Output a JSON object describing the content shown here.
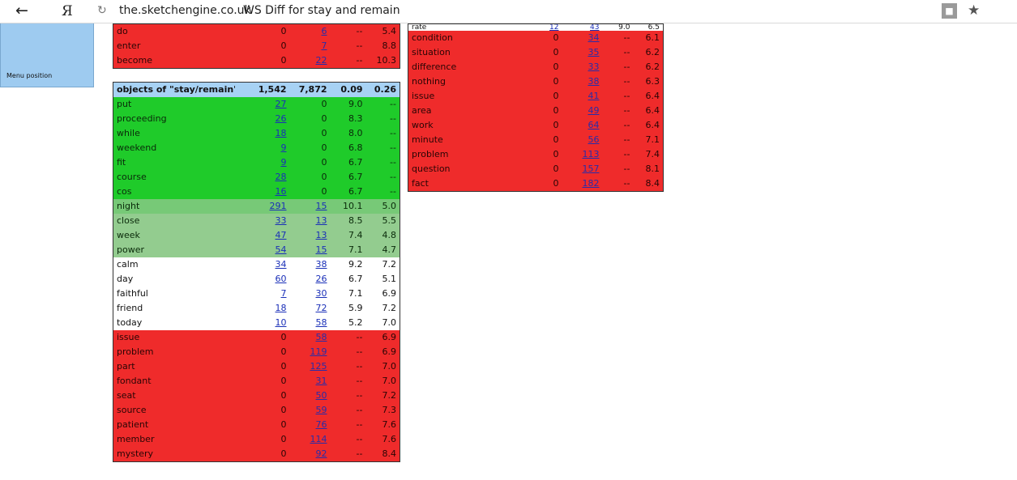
{
  "browser": {
    "back_icon": "←",
    "yandex_icon": "Я",
    "reload_icon": "↻",
    "url": "the.sketchengine.co.uk",
    "page_title": "WS Diff for stay and remain",
    "lock_icon": "🔒",
    "star_icon": "★"
  },
  "sidepanel": {
    "label": "Menu position"
  },
  "left_top": {
    "rows": [
      {
        "word": "do",
        "c1": "0",
        "c2": "6",
        "s1": "--",
        "s2": "5.4"
      },
      {
        "word": "enter",
        "c1": "0",
        "c2": "7",
        "s1": "--",
        "s2": "8.8"
      },
      {
        "word": "become",
        "c1": "0",
        "c2": "22",
        "s1": "--",
        "s2": "10.3"
      }
    ]
  },
  "objects": {
    "header": {
      "word": "objects of \"stay/remain\"",
      "c1": "1,542",
      "c2": "7,872",
      "s1": "0.09",
      "s2": "0.26"
    },
    "rows_green": [
      {
        "word": "put",
        "c1": "27",
        "c2": "0",
        "s1": "9.0",
        "s2": "--"
      },
      {
        "word": "proceeding",
        "c1": "26",
        "c2": "0",
        "s1": "8.3",
        "s2": "--"
      },
      {
        "word": "while",
        "c1": "18",
        "c2": "0",
        "s1": "8.0",
        "s2": "--"
      },
      {
        "word": "weekend",
        "c1": "9",
        "c2": "0",
        "s1": "6.8",
        "s2": "--"
      },
      {
        "word": "fit",
        "c1": "9",
        "c2": "0",
        "s1": "6.7",
        "s2": "--"
      },
      {
        "word": "course",
        "c1": "28",
        "c2": "0",
        "s1": "6.7",
        "s2": "--"
      },
      {
        "word": "cos",
        "c1": "16",
        "c2": "0",
        "s1": "6.7",
        "s2": "--"
      }
    ],
    "rows_green2": [
      {
        "word": "night",
        "c1": "291",
        "c2": "15",
        "s1": "10.1",
        "s2": "5.0"
      }
    ],
    "rows_green3": [
      {
        "word": "close",
        "c1": "33",
        "c2": "13",
        "s1": "8.5",
        "s2": "5.5"
      },
      {
        "word": "week",
        "c1": "47",
        "c2": "13",
        "s1": "7.4",
        "s2": "4.8"
      },
      {
        "word": "power",
        "c1": "54",
        "c2": "15",
        "s1": "7.1",
        "s2": "4.7"
      }
    ],
    "rows_white": [
      {
        "word": "calm",
        "c1": "34",
        "c2": "38",
        "s1": "9.2",
        "s2": "7.2"
      },
      {
        "word": "day",
        "c1": "60",
        "c2": "26",
        "s1": "6.7",
        "s2": "5.1"
      },
      {
        "word": "faithful",
        "c1": "7",
        "c2": "30",
        "s1": "7.1",
        "s2": "6.9"
      },
      {
        "word": "friend",
        "c1": "18",
        "c2": "72",
        "s1": "5.9",
        "s2": "7.2"
      },
      {
        "word": "today",
        "c1": "10",
        "c2": "58",
        "s1": "5.2",
        "s2": "7.0"
      }
    ],
    "rows_red": [
      {
        "word": "issue",
        "c1": "0",
        "c2": "58",
        "s1": "--",
        "s2": "6.9"
      },
      {
        "word": "problem",
        "c1": "0",
        "c2": "119",
        "s1": "--",
        "s2": "6.9"
      },
      {
        "word": "part",
        "c1": "0",
        "c2": "125",
        "s1": "--",
        "s2": "7.0"
      },
      {
        "word": "fondant",
        "c1": "0",
        "c2": "31",
        "s1": "--",
        "s2": "7.0"
      },
      {
        "word": "seat",
        "c1": "0",
        "c2": "50",
        "s1": "--",
        "s2": "7.2"
      },
      {
        "word": "source",
        "c1": "0",
        "c2": "59",
        "s1": "--",
        "s2": "7.3"
      },
      {
        "word": "patient",
        "c1": "0",
        "c2": "76",
        "s1": "--",
        "s2": "7.6"
      },
      {
        "word": "member",
        "c1": "0",
        "c2": "114",
        "s1": "--",
        "s2": "7.6"
      },
      {
        "word": "mystery",
        "c1": "0",
        "c2": "92",
        "s1": "--",
        "s2": "8.4"
      }
    ]
  },
  "right": {
    "cut_row": {
      "word": "rate",
      "c1": "12",
      "c2": "43",
      "s1": "9.0",
      "s2": "6.5"
    },
    "rows": [
      {
        "word": "condition",
        "c1": "0",
        "c2": "34",
        "s1": "--",
        "s2": "6.1"
      },
      {
        "word": "situation",
        "c1": "0",
        "c2": "35",
        "s1": "--",
        "s2": "6.2"
      },
      {
        "word": "difference",
        "c1": "0",
        "c2": "33",
        "s1": "--",
        "s2": "6.2"
      },
      {
        "word": "nothing",
        "c1": "0",
        "c2": "38",
        "s1": "--",
        "s2": "6.3"
      },
      {
        "word": "issue",
        "c1": "0",
        "c2": "41",
        "s1": "--",
        "s2": "6.4"
      },
      {
        "word": "area",
        "c1": "0",
        "c2": "49",
        "s1": "--",
        "s2": "6.4"
      },
      {
        "word": "work",
        "c1": "0",
        "c2": "64",
        "s1": "--",
        "s2": "6.4"
      },
      {
        "word": "minute",
        "c1": "0",
        "c2": "56",
        "s1": "--",
        "s2": "7.1"
      },
      {
        "word": "problem",
        "c1": "0",
        "c2": "113",
        "s1": "--",
        "s2": "7.4"
      },
      {
        "word": "question",
        "c1": "0",
        "c2": "157",
        "s1": "--",
        "s2": "8.1"
      },
      {
        "word": "fact",
        "c1": "0",
        "c2": "182",
        "s1": "--",
        "s2": "8.4"
      }
    ]
  },
  "colors": {
    "strong_green": "#1fcb2a",
    "mid_green": "#77c977",
    "light_green": "#93cc8f",
    "red": "#ef2b2b",
    "header_blue": "#a7d2f4",
    "panel_blue": "#9ecbf0"
  }
}
